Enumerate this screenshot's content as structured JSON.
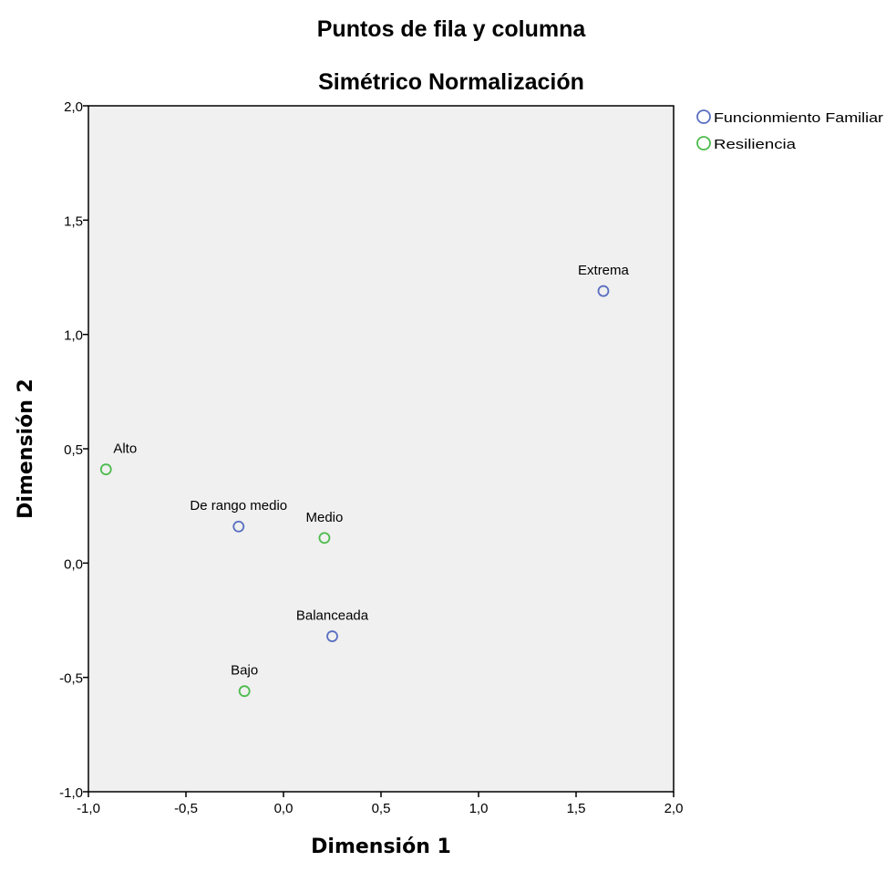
{
  "chart_data": {
    "type": "scatter",
    "title": "Puntos de fila y columna",
    "subtitle": "Simétrico Normalización",
    "xlabel": "Dimensión 1",
    "ylabel": "Dimensión 2",
    "xlim": [
      -1.0,
      2.0
    ],
    "ylim": [
      -1.0,
      2.0
    ],
    "xticks": [
      "-1,0",
      "-0,5",
      "0,0",
      "0,5",
      "1,0",
      "1,5",
      "2,0"
    ],
    "yticks": [
      "-1,0",
      "-0,5",
      "0,0",
      "0,5",
      "1,0",
      "1,5",
      "2,0"
    ],
    "grid": false,
    "legend_position": "top-right",
    "series": [
      {
        "name": "Funcionmiento Familiar",
        "color": "#5a6fc0",
        "points": [
          {
            "label": "Extrema",
            "x": 1.64,
            "y": 1.19
          },
          {
            "label": "De rango medio",
            "x": -0.23,
            "y": 0.16
          },
          {
            "label": "Balanceada",
            "x": 0.25,
            "y": -0.32
          }
        ]
      },
      {
        "name": "Resiliencia",
        "color": "#4dbb4d",
        "points": [
          {
            "label": "Alto",
            "x": -0.91,
            "y": 0.41
          },
          {
            "label": "Medio",
            "x": 0.21,
            "y": 0.11
          },
          {
            "label": "Bajo",
            "x": -0.2,
            "y": -0.56
          }
        ]
      }
    ]
  }
}
